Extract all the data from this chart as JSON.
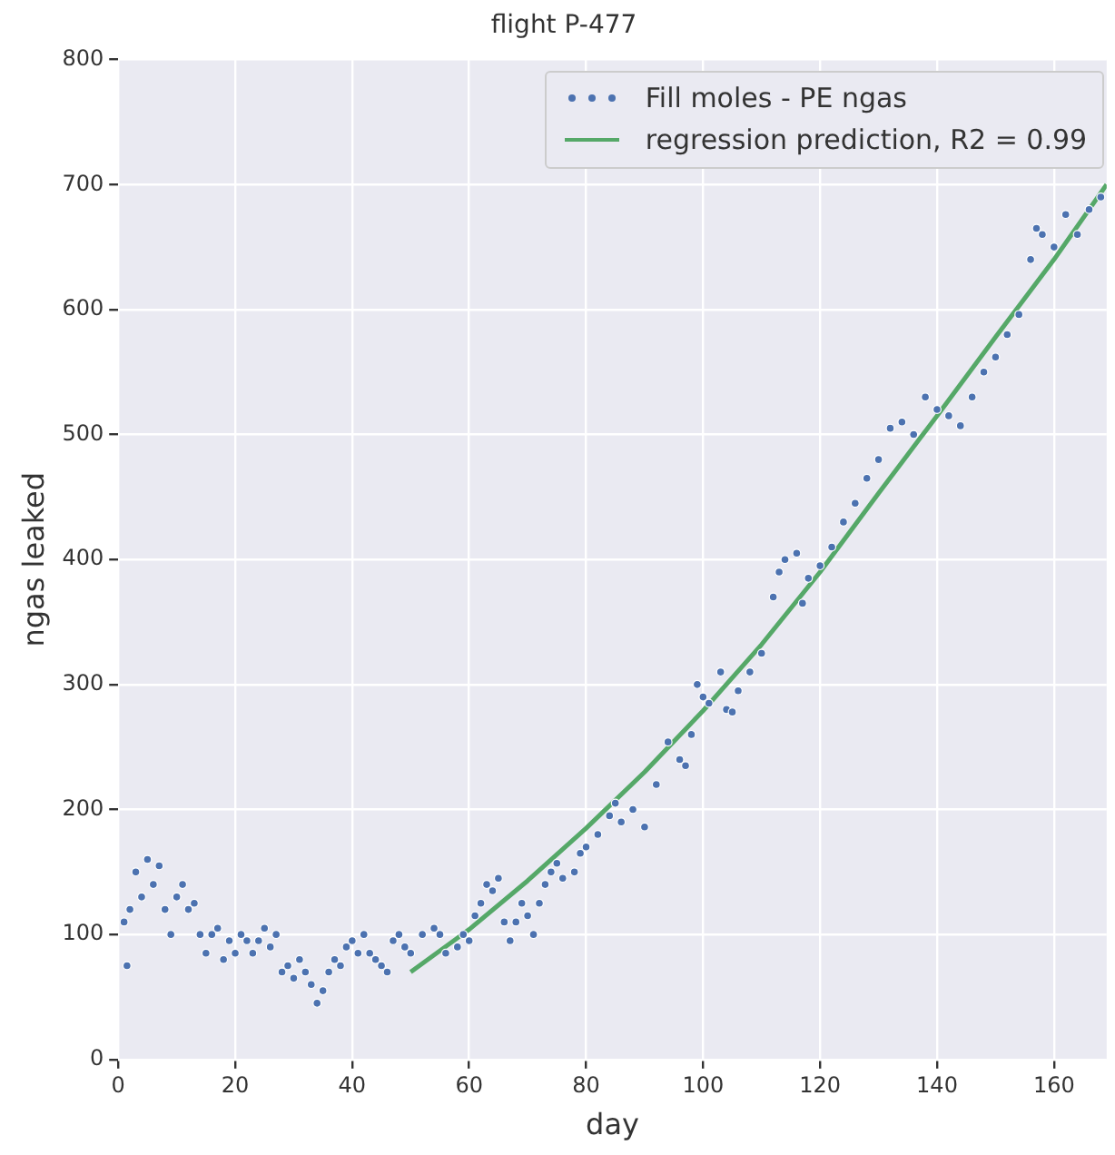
{
  "chart_data": {
    "type": "scatter",
    "title": "flight P-477",
    "xlabel": "day",
    "ylabel": "ngas leaked",
    "xlim": [
      0,
      169
    ],
    "ylim": [
      0,
      800
    ],
    "xticks": [
      0,
      20,
      40,
      60,
      80,
      100,
      120,
      140,
      160
    ],
    "yticks": [
      0,
      100,
      200,
      300,
      400,
      500,
      600,
      700,
      800
    ],
    "grid": true,
    "legend": "top right",
    "series": [
      {
        "name": "Fill moles - PE ngas",
        "type": "scatter",
        "marker": "circle",
        "color": "#4c72b0",
        "x": [
          1,
          1.5,
          2,
          3,
          4,
          5,
          6,
          7,
          8,
          9,
          10,
          11,
          12,
          13,
          14,
          15,
          16,
          17,
          18,
          19,
          20,
          21,
          22,
          23,
          24,
          25,
          26,
          27,
          28,
          29,
          30,
          31,
          32,
          33,
          34,
          35,
          36,
          37,
          38,
          39,
          40,
          41,
          42,
          43,
          44,
          45,
          46,
          47,
          48,
          49,
          50,
          52,
          54,
          55,
          56,
          58,
          59,
          60,
          61,
          62,
          63,
          64,
          65,
          66,
          67,
          68,
          69,
          70,
          71,
          72,
          73,
          74,
          75,
          76,
          78,
          79,
          80,
          82,
          84,
          85,
          86,
          88,
          90,
          92,
          94,
          96,
          97,
          98,
          99,
          100,
          101,
          103,
          104,
          105,
          106,
          108,
          110,
          112,
          113,
          114,
          116,
          117,
          118,
          120,
          122,
          124,
          126,
          128,
          130,
          132,
          134,
          136,
          138,
          140,
          142,
          144,
          146,
          148,
          150,
          152,
          154,
          156,
          157,
          158,
          160,
          162,
          164,
          166,
          168
        ],
        "values": [
          110,
          75,
          120,
          150,
          130,
          160,
          140,
          155,
          120,
          100,
          130,
          140,
          120,
          125,
          100,
          85,
          100,
          105,
          80,
          95,
          85,
          100,
          95,
          85,
          95,
          105,
          90,
          100,
          70,
          75,
          65,
          80,
          70,
          60,
          45,
          55,
          70,
          80,
          75,
          90,
          95,
          85,
          100,
          85,
          80,
          75,
          70,
          95,
          100,
          90,
          85,
          100,
          105,
          100,
          85,
          90,
          100,
          95,
          115,
          125,
          140,
          135,
          145,
          110,
          95,
          110,
          125,
          115,
          100,
          125,
          140,
          150,
          157,
          145,
          150,
          165,
          170,
          180,
          195,
          205,
          190,
          200,
          186,
          220,
          254,
          240,
          235,
          260,
          300,
          290,
          285,
          310,
          280,
          278,
          295,
          310,
          325,
          370,
          390,
          400,
          405,
          365,
          385,
          395,
          410,
          430,
          445,
          465,
          480,
          505,
          510,
          500,
          530,
          520,
          515,
          507,
          530,
          550,
          562,
          580,
          596,
          640,
          665,
          660,
          650,
          676,
          660,
          680,
          690
        ]
      },
      {
        "name": "regression prediction, R2 = 0.99",
        "type": "line",
        "color": "#55a868",
        "x": [
          50,
          60,
          70,
          80,
          90,
          100,
          110,
          120,
          130,
          140,
          150,
          160,
          169
        ],
        "values": [
          70,
          104,
          143,
          185,
          230,
          279,
          332,
          390,
          453,
          515,
          578,
          640,
          700
        ]
      }
    ]
  }
}
